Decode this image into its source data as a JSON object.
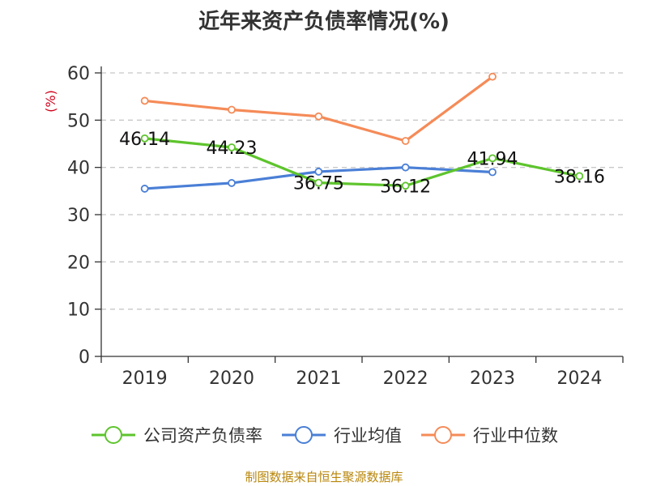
{
  "title": "近年来资产负债率情况(%)",
  "source_note": "制图数据来自恒生聚源数据库",
  "chart_data": {
    "type": "line",
    "title": "近年来资产负债率情况(%)",
    "ylabel": "(%)",
    "categories": [
      "2019",
      "2020",
      "2021",
      "2022",
      "2023",
      "2024"
    ],
    "ylim": [
      0,
      60
    ],
    "yticks": [
      0,
      10,
      20,
      30,
      40,
      50,
      60
    ],
    "grid": true,
    "legend_position": "bottom",
    "series": [
      {
        "name": "公司资产负债率",
        "color": "#5ec42d",
        "values": [
          46.14,
          44.23,
          36.75,
          36.12,
          41.94,
          38.16
        ],
        "labels": [
          "46.14",
          "44.23",
          "36.75",
          "36.12",
          "41.94",
          "38.16"
        ]
      },
      {
        "name": "行业均值",
        "color": "#4a7fd6",
        "values": [
          35.5,
          36.7,
          39.1,
          40.0,
          39.0,
          null
        ]
      },
      {
        "name": "行业中位数",
        "color": "#f58b58",
        "values": [
          54.1,
          52.2,
          50.8,
          45.6,
          59.2,
          null
        ]
      }
    ]
  }
}
